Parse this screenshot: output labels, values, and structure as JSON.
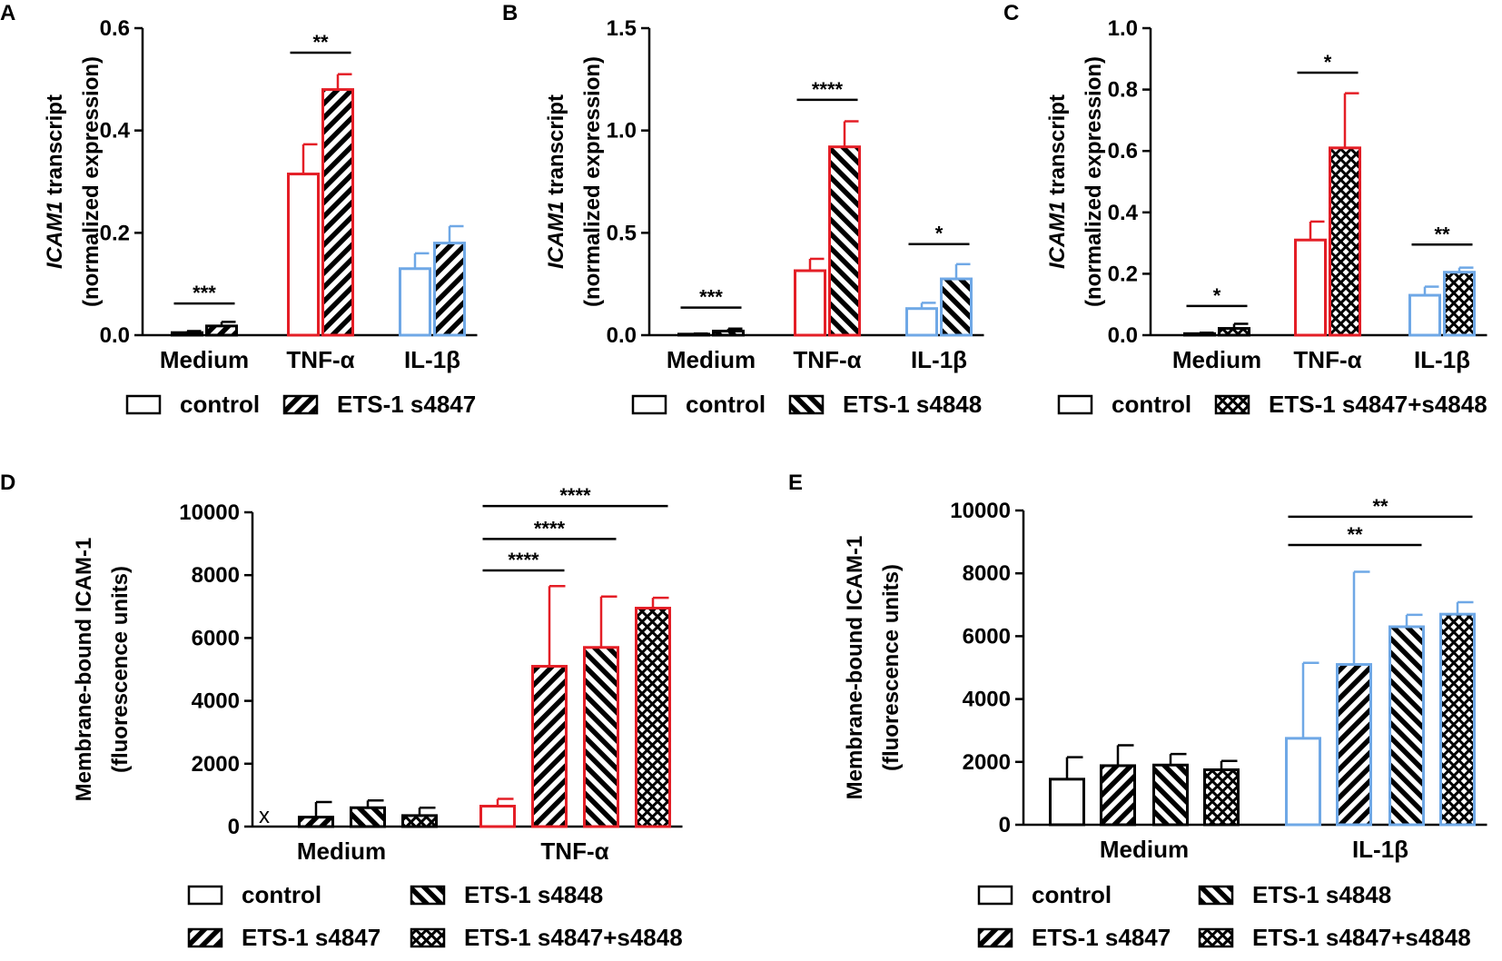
{
  "figure": {
    "label": "ICAM1 figure panels A-E"
  },
  "colors": {
    "medium": "#000000",
    "tnf": "#e41e26",
    "il1b": "#6fa8e6",
    "axis": "#000000"
  },
  "conditions": {
    "control": "control",
    "s4847": "ETS-1 s4847",
    "s4848": "ETS-1 s4848",
    "combo": "ETS-1 s4847+s4848"
  },
  "chart_data": [
    {
      "panel": "A",
      "type": "bar",
      "ylabel_italic": "ICAM1",
      "ylabel_rest": " transcript",
      "ylabel2": "(normalized expression)",
      "ylim": [
        0,
        0.6
      ],
      "yticks": [
        "0.0",
        "0.2",
        "0.4",
        "0.6"
      ],
      "ytick_values": [
        0,
        0.2,
        0.4,
        0.6
      ],
      "categories": [
        "Medium",
        "TNF-α",
        "IL-1β"
      ],
      "series": [
        {
          "name": "control",
          "pattern": "open",
          "values": [
            0.005,
            0.315,
            0.13
          ],
          "errors": [
            0.003,
            0.058,
            0.03
          ]
        },
        {
          "name": "ETS-1 s4847",
          "pattern": "hatch",
          "values": [
            0.018,
            0.48,
            0.18
          ],
          "errors": [
            0.008,
            0.03,
            0.033
          ]
        }
      ],
      "significance": [
        {
          "category": 0,
          "from": 0,
          "to": 1,
          "label": "***",
          "level": 0.062
        },
        {
          "category": 1,
          "from": 0,
          "to": 1,
          "label": "**",
          "level": 0.552
        }
      ],
      "legend": [
        "control",
        "ETS-1 s4847"
      ]
    },
    {
      "panel": "B",
      "type": "bar",
      "ylabel_italic": "ICAM1",
      "ylabel_rest": " transcript",
      "ylabel2": "(normalized expression)",
      "ylim": [
        0,
        1.5
      ],
      "yticks": [
        "0.0",
        "0.5",
        "1.0",
        "1.5"
      ],
      "ytick_values": [
        0,
        0.5,
        1.0,
        1.5
      ],
      "categories": [
        "Medium",
        "TNF-α",
        "IL-1β"
      ],
      "series": [
        {
          "name": "control",
          "pattern": "open",
          "values": [
            0.005,
            0.315,
            0.13
          ],
          "errors": [
            0.003,
            0.058,
            0.028
          ]
        },
        {
          "name": "ETS-1 s4848",
          "pattern": "back",
          "values": [
            0.02,
            0.92,
            0.275
          ],
          "errors": [
            0.012,
            0.125,
            0.072
          ]
        }
      ],
      "significance": [
        {
          "category": 0,
          "from": 0,
          "to": 1,
          "label": "***",
          "level": 0.135
        },
        {
          "category": 1,
          "from": 0,
          "to": 1,
          "label": "****",
          "level": 1.15
        },
        {
          "category": 2,
          "from": 0,
          "to": 1,
          "label": "*",
          "level": 0.445
        }
      ],
      "legend": [
        "control",
        "ETS-1 s4848"
      ]
    },
    {
      "panel": "C",
      "type": "bar",
      "ylabel_italic": "ICAM1",
      "ylabel_rest": " transcript",
      "ylabel2": "(normalized expression)",
      "ylim": [
        0,
        1.0
      ],
      "yticks": [
        "0.0",
        "0.2",
        "0.4",
        "0.6",
        "0.8",
        "1.0"
      ],
      "ytick_values": [
        0,
        0.2,
        0.4,
        0.6,
        0.8,
        1.0
      ],
      "categories": [
        "Medium",
        "TNF-α",
        "IL-1β"
      ],
      "series": [
        {
          "name": "control",
          "pattern": "open",
          "values": [
            0.005,
            0.31,
            0.13
          ],
          "errors": [
            0.003,
            0.06,
            0.028
          ]
        },
        {
          "name": "ETS-1 s4847+s4848",
          "pattern": "cross",
          "values": [
            0.022,
            0.61,
            0.205
          ],
          "errors": [
            0.015,
            0.178,
            0.015
          ]
        }
      ],
      "significance": [
        {
          "category": 0,
          "from": 0,
          "to": 1,
          "label": "*",
          "level": 0.095
        },
        {
          "category": 1,
          "from": 0,
          "to": 1,
          "label": "*",
          "level": 0.855
        },
        {
          "category": 2,
          "from": 0,
          "to": 1,
          "label": "**",
          "level": 0.295
        }
      ],
      "legend": [
        "control",
        "ETS-1 s4847+s4848"
      ]
    },
    {
      "panel": "D",
      "type": "bar",
      "ylabel": "Membrane-bound ICAM-1",
      "ylabel2": "(fluorescence units)",
      "ylim": [
        0,
        10000
      ],
      "yticks": [
        "0",
        "2000",
        "4000",
        "6000",
        "8000",
        "10000"
      ],
      "ytick_values": [
        0,
        2000,
        4000,
        6000,
        8000,
        10000
      ],
      "categories": [
        "Medium",
        "TNF-α"
      ],
      "series": [
        {
          "name": "control",
          "pattern": "open",
          "values": [
            null,
            650
          ],
          "errors": [
            0,
            230
          ]
        },
        {
          "name": "ETS-1 s4847",
          "pattern": "hatch",
          "values": [
            300,
            5100
          ],
          "errors": [
            480,
            2550
          ]
        },
        {
          "name": "ETS-1 s4848",
          "pattern": "back",
          "values": [
            600,
            5700
          ],
          "errors": [
            230,
            1620
          ]
        },
        {
          "name": "ETS-1 s4847+s4848",
          "pattern": "cross",
          "values": [
            350,
            6950
          ],
          "errors": [
            250,
            330
          ]
        }
      ],
      "missing_marker": "x",
      "significance": [
        {
          "category": 1,
          "from": 0,
          "to": 1,
          "label": "****",
          "level": 8150
        },
        {
          "category": 1,
          "from": 0,
          "to": 2,
          "label": "****",
          "level": 9150
        },
        {
          "category": 1,
          "from": 0,
          "to": 3,
          "label": "****",
          "level": 10200
        }
      ],
      "legend": [
        "control",
        "ETS-1 s4848",
        "ETS-1 s4847",
        "ETS-1 s4847+s4848"
      ]
    },
    {
      "panel": "E",
      "type": "bar",
      "ylabel": "Membrane-bound ICAM-1",
      "ylabel2": "(fluorescence units)",
      "ylim": [
        0,
        10000
      ],
      "yticks": [
        "0",
        "2000",
        "4000",
        "6000",
        "8000",
        "10000"
      ],
      "ytick_values": [
        0,
        2000,
        4000,
        6000,
        8000,
        10000
      ],
      "categories": [
        "Medium",
        "IL-1β"
      ],
      "series": [
        {
          "name": "control",
          "pattern": "open",
          "values": [
            1450,
            2750
          ],
          "errors": [
            700,
            2400
          ]
        },
        {
          "name": "ETS-1 s4847",
          "pattern": "hatch",
          "values": [
            1880,
            5100
          ],
          "errors": [
            650,
            2950
          ]
        },
        {
          "name": "ETS-1 s4848",
          "pattern": "back",
          "values": [
            1900,
            6300
          ],
          "errors": [
            350,
            380
          ]
        },
        {
          "name": "ETS-1 s4847+s4848",
          "pattern": "cross",
          "values": [
            1750,
            6700
          ],
          "errors": [
            280,
            380
          ]
        }
      ],
      "significance": [
        {
          "category": 1,
          "from": 0,
          "to": 2,
          "label": "**",
          "level": 8900
        },
        {
          "category": 1,
          "from": 0,
          "to": 3,
          "label": "**",
          "level": 9800
        }
      ],
      "legend": [
        "control",
        "ETS-1 s4848",
        "ETS-1 s4847",
        "ETS-1 s4847+s4848"
      ]
    }
  ]
}
